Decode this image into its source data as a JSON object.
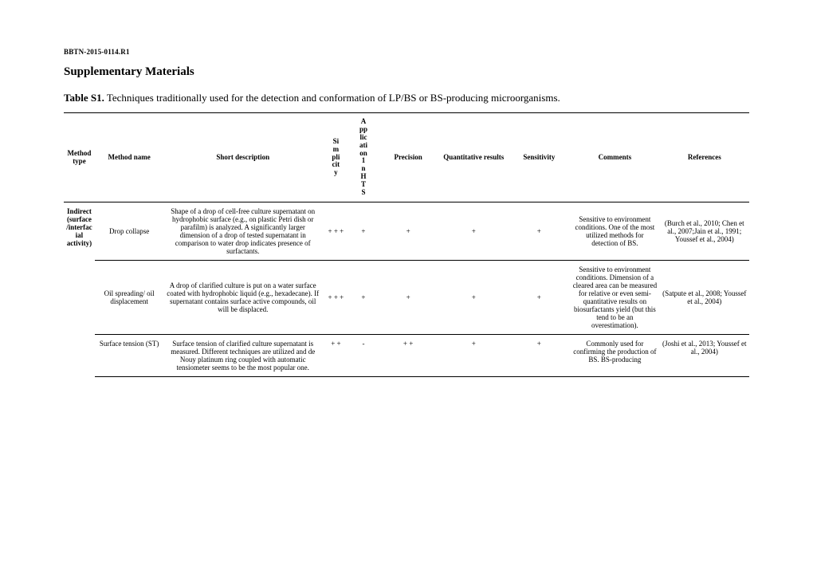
{
  "header_code": "BBTN-2015-0114.R1",
  "doc_title": "Supplementary Materials",
  "table_label": "Table S1.",
  "table_caption": " Techniques traditionally used for the detection and conformation of LP/BS or BS-producing microorganisms.",
  "columns": {
    "type": "Method type",
    "name": "Method name",
    "desc": "Short description",
    "simp": "Simplicity",
    "app": "Application1 n HTS",
    "prec": "Precision",
    "quant": "Quantitative results",
    "sens": "Sensitivity",
    "comm": "Comments",
    "ref": "References"
  },
  "method_type": "Indirect (surface/interfacial activity)",
  "rows": [
    {
      "name": "Drop collapse",
      "desc": "Shape of a drop of cell-free culture supernatant on hydrophobic surface (e.g., on plastic Petri dish or parafilm) is analyzed. A significantly larger dimension of a drop of tested supernatant in comparison to water drop indicates presence of surfactants.",
      "simp": "+ + +",
      "app": "+",
      "prec": "+",
      "quant": "+",
      "sens": "+",
      "comm": "Sensitive to environment conditions. One of the most utilized methods for detection of BS.",
      "ref": "(Burch et al., 2010; Chen et al., 2007;Jain et al., 1991; Youssef et al., 2004)"
    },
    {
      "name": "Oil spreading/ oil displacement",
      "desc": "A drop of clarified culture is put on a water surface coated with hydrophobic liquid (e.g., hexadecane). If supernatant contains surface active compounds, oil will be displaced.",
      "simp": "+ + +",
      "app": "+",
      "prec": "+",
      "quant": "+",
      "sens": "+",
      "comm": "Sensitive to environment conditions. Dimension of a cleared area can be measured for relative or even semi-quantitative results on biosurfactants yield (but this tend to be an overestimation).",
      "ref": "(Satpute et al., 2008; Youssef et al., 2004)"
    },
    {
      "name": "Surface tension (ST)",
      "desc": "Surface tension of clarified culture supernatant is measured. Different techniques are utilized and de Nouy platinum ring coupled with automatic tensiometer seems to be the most popular one.",
      "simp": "+ +",
      "app": "-",
      "prec": "+ +",
      "quant": "+",
      "sens": "+",
      "comm": "Commonly used for confirming the production of BS. BS-producing",
      "ref": "(Joshi et al., 2013; Youssef et al., 2004)"
    }
  ]
}
